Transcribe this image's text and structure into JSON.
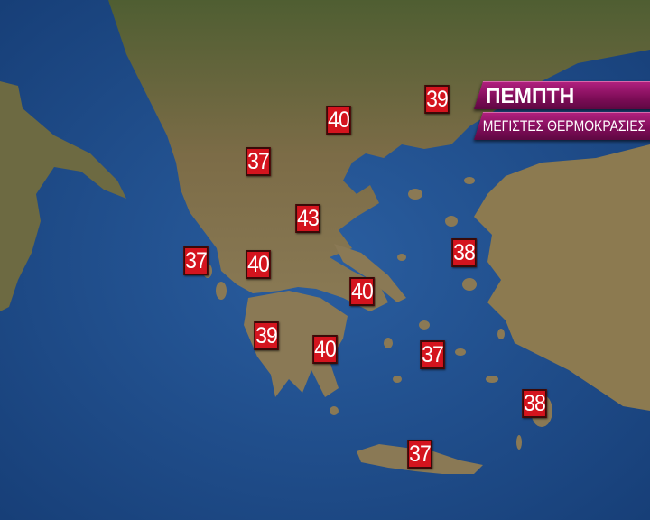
{
  "header": {
    "day": "ΠΕΜΠΤΗ",
    "subtitle": "ΜΕΓΙΣΤΕΣ ΘΕΡΜΟΚΡΑΣΙΕΣ"
  },
  "colors": {
    "sea": "#1f4f8c",
    "land": "#7a6a45",
    "badge": "#d4141e",
    "banner": "#8a0f60"
  },
  "temperatures": [
    {
      "value": "39",
      "region": "east-thrace"
    },
    {
      "value": "40",
      "region": "central-macedonia"
    },
    {
      "value": "37",
      "region": "western-macedonia"
    },
    {
      "value": "43",
      "region": "thessaly"
    },
    {
      "value": "37",
      "region": "ionian-islands"
    },
    {
      "value": "40",
      "region": "western-greece"
    },
    {
      "value": "38",
      "region": "north-aegean"
    },
    {
      "value": "40",
      "region": "attica"
    },
    {
      "value": "39",
      "region": "western-peloponnese"
    },
    {
      "value": "40",
      "region": "eastern-peloponnese"
    },
    {
      "value": "37",
      "region": "cyclades"
    },
    {
      "value": "38",
      "region": "dodecanese"
    },
    {
      "value": "37",
      "region": "crete"
    }
  ]
}
